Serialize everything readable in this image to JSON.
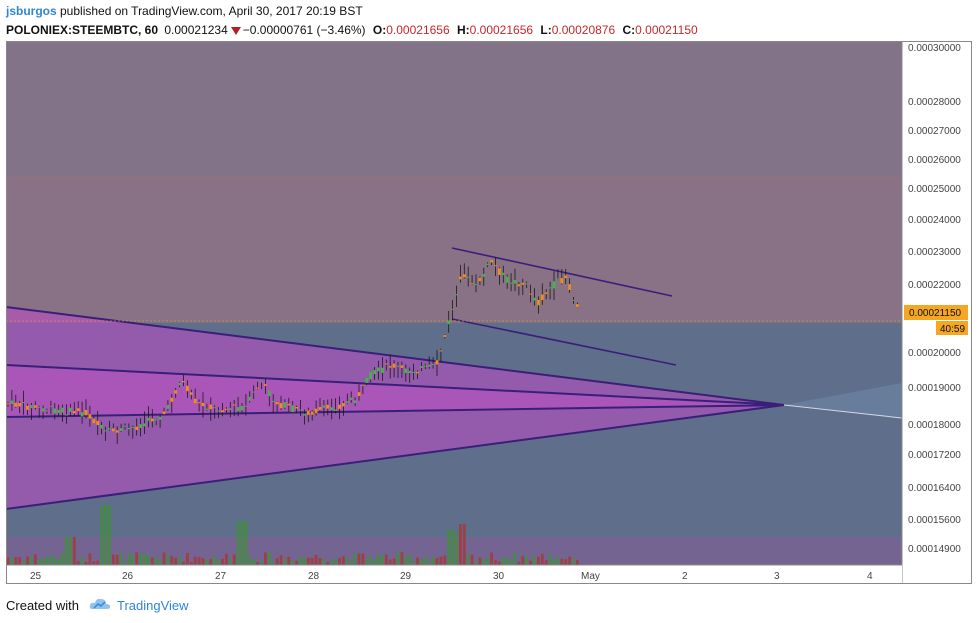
{
  "header": {
    "user": "jsburgos",
    "published": " published on TradingView.com, April 30, 2017 20:19 BST",
    "symbol": "POLONIEX:STEEMBTC, 60",
    "last": "0.00021234",
    "change": "−0.00000761 (−3.46%)",
    "o_label": "O:",
    "o_value": "0.00021656",
    "h_label": "H:",
    "h_value": "0.00021656",
    "l_label": "L:",
    "l_value": "0.00020876",
    "c_label": "C:",
    "c_value": "0.00021150"
  },
  "price_axis": {
    "ticks": [
      "0.00030000",
      "0.00028000",
      "0.00027000",
      "0.00026000",
      "0.00025000",
      "0.00024000",
      "0.00023000",
      "0.00022000",
      "0.00020000",
      "0.00019000",
      "0.00018000",
      "0.00017200",
      "0.00016400",
      "0.00015600",
      "0.00014900"
    ],
    "current_price": "0.00021150",
    "countdown": "40:59"
  },
  "time_axis": {
    "ticks": [
      "25",
      "26",
      "27",
      "28",
      "29",
      "30",
      "May",
      "2",
      "3",
      "4"
    ]
  },
  "footer": {
    "created": "Created with",
    "brand": "TradingView"
  },
  "colors": {
    "background_upper": "#857389",
    "background_lower": "#5f6e8a",
    "up_candle": "#4caf50",
    "down_candle": "#ef8c1c",
    "trendline": "#3a1f7a",
    "wedge_fill": "#c04ac6",
    "price_label": "#f5a623"
  }
}
